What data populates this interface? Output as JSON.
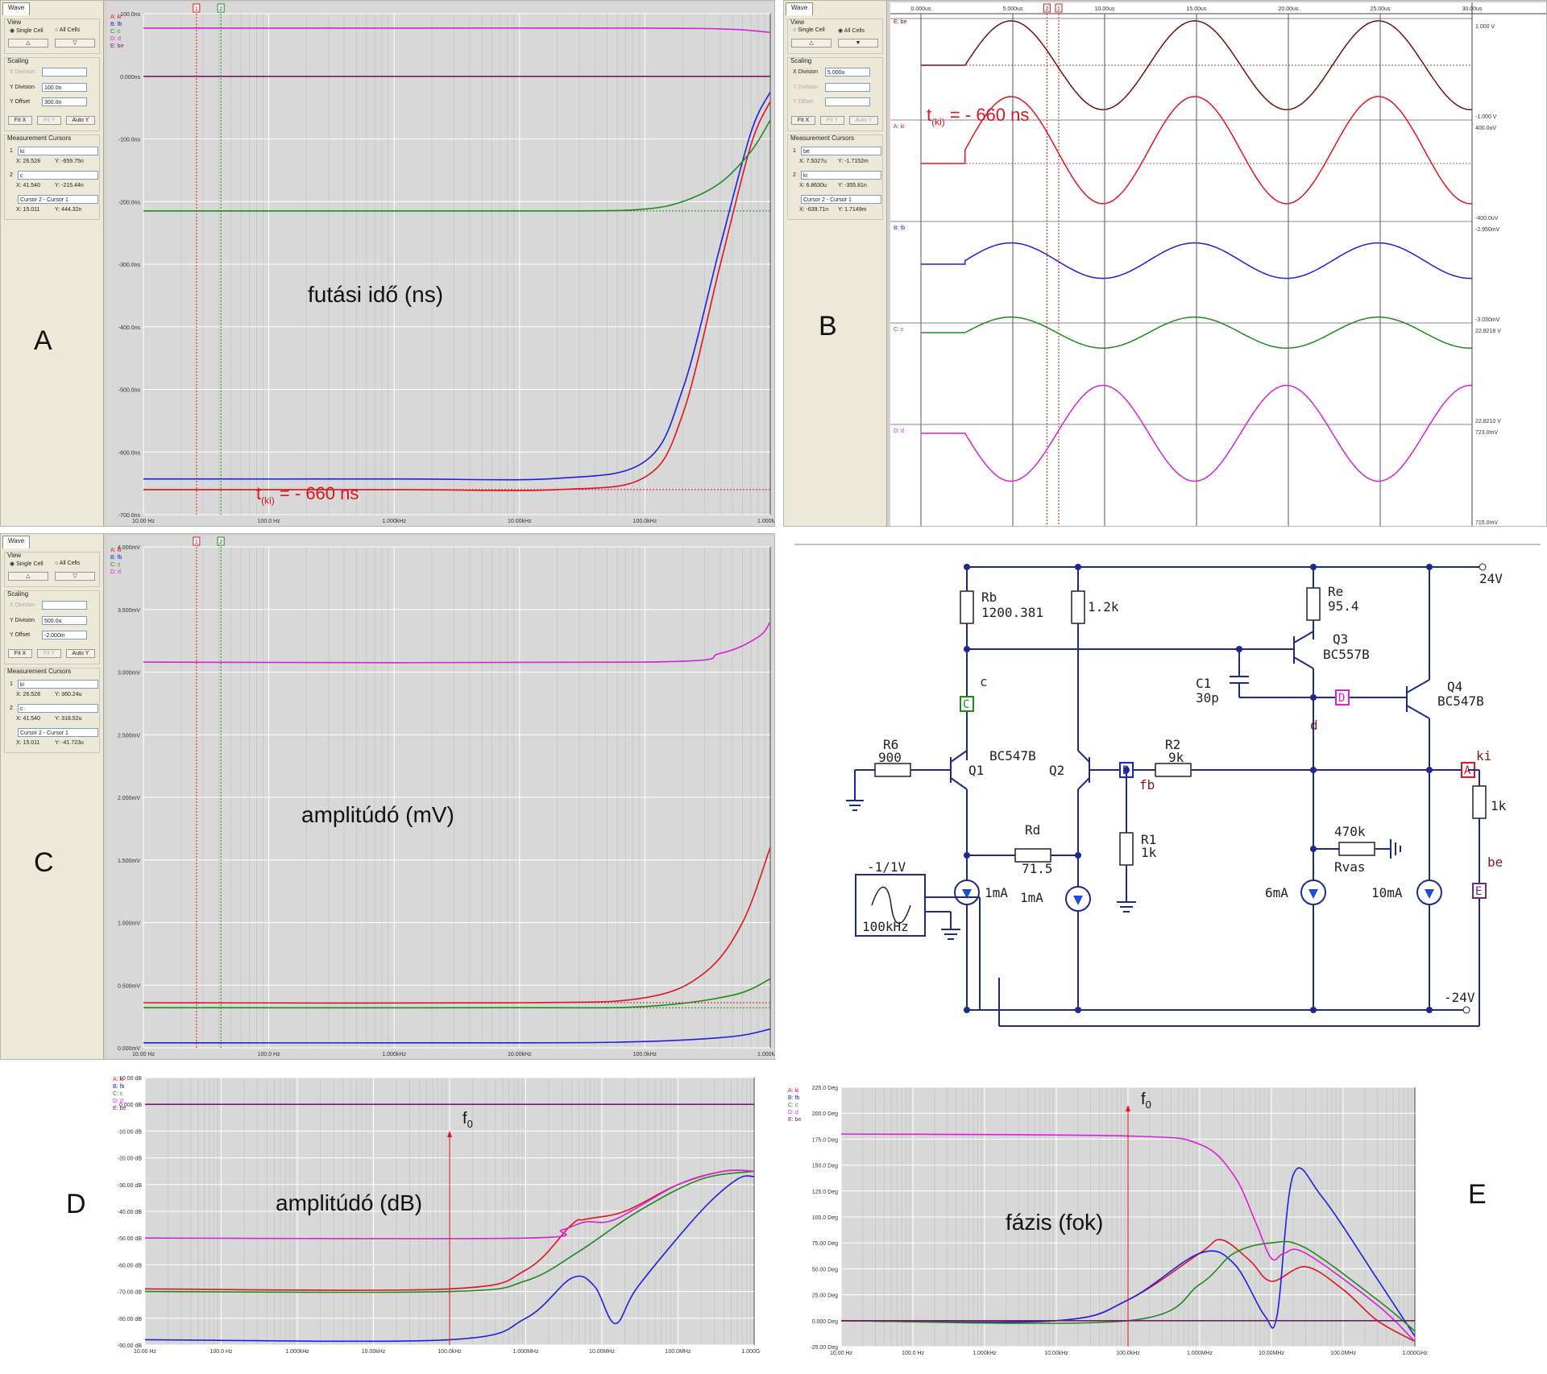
{
  "panel_letters": {
    "a": "A",
    "b": "B",
    "c": "C",
    "d": "D",
    "e": "E"
  },
  "sidebar": {
    "tab": "Wave",
    "view": "View",
    "single_cell": "Single Cell",
    "all_cells": "All Cells",
    "scaling": "Scaling",
    "x_division": "X Division",
    "y_division": "Y Division",
    "y_offset": "Y Offset",
    "fit_x": "Fit X",
    "fit_y": "Fit Y",
    "auto_y": "Auto Y",
    "measurement_cursors": "Measurement Cursors",
    "cursor_diff": "Cursor 2 - Cursor 1"
  },
  "panel_a": {
    "y_division_value": "100.0n",
    "y_offset_value": "300.0n",
    "cursor1": {
      "num": "1",
      "trace": "ki",
      "x": "X: 26.528",
      "y": "Y: -659.75n"
    },
    "cursor2": {
      "num": "2",
      "trace": "c",
      "x": "X: 41.540",
      "y": "Y: -215.44n"
    },
    "diff": {
      "x": "X: 15.011",
      "y": "Y: 444.32n"
    },
    "annotation": "futási idő (ns)",
    "t_ki": "t",
    "t_ki_sub": "(ki)",
    "t_ki_value": "= - 660 ns"
  },
  "panel_b": {
    "x_division_value": "5.000u",
    "cursor1": {
      "num": "1",
      "trace": "be",
      "x": "X: 7.5027u",
      "y": "Y: -1.7152m"
    },
    "cursor2": {
      "num": "2",
      "trace": "ki",
      "x": "X: 6.8630u",
      "y": "Y: -355.81n"
    },
    "diff": {
      "x": "X: -639.71n",
      "y": "Y: 1.7149m"
    },
    "t_ki": "t",
    "t_ki_sub": "(ki)",
    "t_ki_value": "= - 660 ns"
  },
  "panel_c": {
    "y_division_value": "500.0u",
    "y_offset_value": "-2.000m",
    "cursor1": {
      "num": "1",
      "trace": "ki",
      "x": "X: 26.528",
      "y": "Y: 360.24u"
    },
    "cursor2": {
      "num": "2",
      "trace": "c",
      "x": "X: 41.540",
      "y": "Y: 318.52u"
    },
    "diff": {
      "x": "X: 15.011",
      "y": "Y: -41.723u"
    },
    "annotation": "amplitúdó (mV)"
  },
  "panel_d": {
    "annotation": "amplitúdó (dB)",
    "f0": "f",
    "f0_sub": "0"
  },
  "panel_e": {
    "annotation": "fázis (fok)",
    "f0": "f",
    "f0_sub": "0"
  },
  "schematic": {
    "v_pos": "24V",
    "v_neg": "-24V",
    "rb": "Rb",
    "rb_val": "1200.381",
    "r_c2": "1.2k",
    "re": "Re",
    "re_val": "95.4",
    "q3": "Q3",
    "q3_type": "BC557B",
    "q4": "Q4",
    "q4_type": "BC547B",
    "c1": "C1",
    "c1_val": "30p",
    "node_c": "c",
    "probe_c": "C",
    "node_d": "d",
    "probe_d": "D",
    "r6": "R6",
    "r6_val": "900",
    "q1": "Q1",
    "q1_type": "BC547B",
    "q2": "Q2",
    "probe_b": "B",
    "node_fb": "fb",
    "r2": "R2",
    "r2_val": "9k",
    "probe_a": "A",
    "node_ki": "ki",
    "r_load": "1k",
    "rd": "Rd",
    "rd_val": "71.5",
    "r1": "R1",
    "r1_val": "1k",
    "r_vas": "470k",
    "r_vas_name": "Rvas",
    "node_be": "be",
    "probe_e": "E",
    "src_label": "-1/1V",
    "src_freq": "100kHz",
    "i1": "1mA",
    "i2": "1mA",
    "i3": "6mA",
    "i4": "10mA"
  },
  "chart_data": [
    {
      "type": "line",
      "id": "A",
      "xscale": "log",
      "x_ticks": [
        "10.00 Hz",
        "100.0 Hz",
        "1.000kHz",
        "10.00kHz",
        "100.0kHz",
        "1.000MHz"
      ],
      "y_ticks": [
        "100.0ns",
        "0.000ns",
        "-100.0ns",
        "-200.0ns",
        "-300.0ns",
        "-400.0ns",
        "-500.0ns",
        "-600.0ns",
        "-700.0ns"
      ],
      "ylim": [
        -700,
        100
      ],
      "legend": [
        "A: ki",
        "B: fb",
        "C: c",
        "D: d",
        "E: be"
      ],
      "cursors": [
        "1",
        "2"
      ],
      "series": [
        {
          "name": "ki",
          "color": "#e0141e",
          "points": [
            [
              10,
              -660
            ],
            [
              1000,
              -660
            ],
            [
              20000,
              -660
            ],
            [
              100000,
              -640
            ],
            [
              200000,
              -540
            ],
            [
              400000,
              -300
            ],
            [
              700000,
              -110
            ],
            [
              1000000,
              -40
            ]
          ]
        },
        {
          "name": "fb",
          "color": "#1e1ee0",
          "points": [
            [
              10,
              -643
            ],
            [
              1000,
              -643
            ],
            [
              20000,
              -642
            ],
            [
              100000,
              -615
            ],
            [
              200000,
              -500
            ],
            [
              400000,
              -270
            ],
            [
              700000,
              -90
            ],
            [
              1000000,
              -25
            ]
          ]
        },
        {
          "name": "c",
          "color": "#1e8a1e",
          "points": [
            [
              10,
              -215
            ],
            [
              1000,
              -215
            ],
            [
              30000,
              -215
            ],
            [
              100000,
              -212
            ],
            [
              200000,
              -200
            ],
            [
              400000,
              -170
            ],
            [
              700000,
              -120
            ],
            [
              1000000,
              -70
            ]
          ]
        },
        {
          "name": "d",
          "color": "#d622d6",
          "points": [
            [
              10,
              77
            ],
            [
              1000,
              77
            ],
            [
              100000,
              77
            ],
            [
              500000,
              75
            ],
            [
              1000000,
              70
            ]
          ]
        },
        {
          "name": "be",
          "color": "#7a1a6a",
          "points": [
            [
              10,
              0
            ],
            [
              1000000,
              0
            ]
          ]
        }
      ]
    },
    {
      "type": "line",
      "id": "B",
      "x_ticks": [
        "0.000us",
        "5.000us",
        "10.00us",
        "15.00us",
        "20.00us",
        "25.00us",
        "30.00us"
      ],
      "xlim": [
        0,
        30
      ],
      "traces": [
        {
          "label": "E: be",
          "color": "#6e1010",
          "top": "1.000 V",
          "bottom": "-1.000 V"
        },
        {
          "label": "A: ki",
          "color": "#e0141e",
          "top": "400.0uV",
          "bottom": "-400.0uV"
        },
        {
          "label": "B: fb",
          "color": "#1e1ee0",
          "top": "-2.950mV",
          "bottom": "-3.030mV"
        },
        {
          "label": "C: c",
          "color": "#1e8a1e",
          "top": "22.8218 V",
          "bottom": "22.8210 V"
        },
        {
          "label": "D: d",
          "color": "#d622d6",
          "top": "723.0mV",
          "bottom": "715.0mV"
        }
      ],
      "cursors": [
        "2",
        "1"
      ]
    },
    {
      "type": "line",
      "id": "C",
      "xscale": "log",
      "x_ticks": [
        "10.00 Hz",
        "100.0 Hz",
        "1.000kHz",
        "10.00kHz",
        "100.0kHz",
        "1.000MHz"
      ],
      "y_ticks": [
        "4.000mV",
        "3.500mV",
        "3.000mV",
        "2.500mV",
        "2.000mV",
        "1.500mV",
        "1.000mV",
        "0.500mV",
        "0.000mV"
      ],
      "ylim": [
        0,
        4
      ],
      "legend": [
        "A: ki",
        "B: fb",
        "C: c",
        "D: d"
      ],
      "cursors": [
        "1",
        "2"
      ],
      "series": [
        {
          "name": "ki",
          "color": "#e0141e",
          "points": [
            [
              10,
              0.36
            ],
            [
              10000,
              0.36
            ],
            [
              100000,
              0.4
            ],
            [
              300000,
              0.6
            ],
            [
              600000,
              1.0
            ],
            [
              1000000,
              1.6
            ]
          ]
        },
        {
          "name": "fb",
          "color": "#1e1ee0",
          "points": [
            [
              10,
              0.04
            ],
            [
              10000,
              0.04
            ],
            [
              100000,
              0.05
            ],
            [
              500000,
              0.09
            ],
            [
              1000000,
              0.15
            ]
          ]
        },
        {
          "name": "c",
          "color": "#1e8a1e",
          "points": [
            [
              10,
              0.32
            ],
            [
              10000,
              0.32
            ],
            [
              100000,
              0.33
            ],
            [
              500000,
              0.42
            ],
            [
              1000000,
              0.55
            ]
          ]
        },
        {
          "name": "d",
          "color": "#d622d6",
          "points": [
            [
              10,
              3.08
            ],
            [
              100000,
              3.08
            ],
            [
              400000,
              3.15
            ],
            [
              800000,
              3.28
            ],
            [
              1000000,
              3.4
            ]
          ]
        }
      ]
    },
    {
      "type": "line",
      "id": "D",
      "xscale": "log",
      "x_ticks": [
        "10.00 Hz",
        "100.0 Hz",
        "1.000kHz",
        "10.00kHz",
        "100.0kHz",
        "1.000MHz",
        "10.00MHz",
        "100.0MHz",
        "1.000GHz"
      ],
      "y_ticks": [
        "10.00 dB",
        "0.000 dB",
        "-10.00 dB",
        "-20.00 dB",
        "-30.00 dB",
        "-40.00 dB",
        "-50.00 dB",
        "-60.00 dB",
        "-70.00 dB",
        "-80.00 dB",
        "-90.00 dB"
      ],
      "ylim": [
        -90,
        10
      ],
      "legend": [
        "A: ki",
        "B: fb",
        "C: c",
        "D: d",
        "E: be"
      ],
      "series": [
        {
          "name": "ki",
          "color": "#e0141e",
          "points": [
            [
              10,
              -69
            ],
            [
              100000,
              -69
            ],
            [
              1000000,
              -62
            ],
            [
              4000000,
              -45
            ],
            [
              6000000,
              -43
            ],
            [
              20000000,
              -40
            ],
            [
              100000000,
              -30
            ],
            [
              400000000,
              -25
            ],
            [
              1000000000,
              -25
            ]
          ]
        },
        {
          "name": "fb",
          "color": "#1e1ee0",
          "points": [
            [
              10,
              -88
            ],
            [
              100000,
              -88
            ],
            [
              1000000,
              -80
            ],
            [
              4000000,
              -65
            ],
            [
              8000000,
              -68
            ],
            [
              15000000,
              -82
            ],
            [
              30000000,
              -68
            ],
            [
              200000000,
              -40
            ],
            [
              600000000,
              -28
            ],
            [
              1000000000,
              -27
            ]
          ]
        },
        {
          "name": "c",
          "color": "#1e8a1e",
          "points": [
            [
              10,
              -70
            ],
            [
              100000,
              -70
            ],
            [
              1000000,
              -66
            ],
            [
              5000000,
              -55
            ],
            [
              30000000,
              -40
            ],
            [
              200000000,
              -28
            ],
            [
              1000000000,
              -25
            ]
          ]
        },
        {
          "name": "d",
          "color": "#d622d6",
          "points": [
            [
              10,
              -50
            ],
            [
              1000000,
              -50
            ],
            [
              3000000,
              -47
            ],
            [
              6000000,
              -44
            ],
            [
              15000000,
              -43
            ],
            [
              100000000,
              -30
            ],
            [
              400000000,
              -25
            ],
            [
              1000000000,
              -25
            ]
          ]
        },
        {
          "name": "be",
          "color": "#7a1a6a",
          "points": [
            [
              10,
              0
            ],
            [
              1000000000,
              0
            ]
          ]
        }
      ]
    },
    {
      "type": "line",
      "id": "E",
      "xscale": "log",
      "x_ticks": [
        "10.00 Hz",
        "100.0 Hz",
        "1.000kHz",
        "10.00kHz",
        "100.0kHz",
        "1.000MHz",
        "10.00MHz",
        "100.0MHz",
        "1.000GHz"
      ],
      "y_ticks": [
        "225.0 Deg",
        "200.0 Deg",
        "175.0 Deg",
        "150.0 Deg",
        "125.0 Deg",
        "100.0 Deg",
        "75.00 Deg",
        "50.00 Deg",
        "25.00 Deg",
        "0.000 Deg",
        "-25.00 Deg"
      ],
      "ylim": [
        -25,
        225
      ],
      "legend": [
        "A: ki",
        "B: fb",
        "C: c",
        "D: d",
        "E: be"
      ],
      "series": [
        {
          "name": "ki",
          "color": "#e0141e",
          "points": [
            [
              10,
              0
            ],
            [
              10000,
              0
            ],
            [
              100000,
              20
            ],
            [
              1000000,
              65
            ],
            [
              2000000,
              78
            ],
            [
              5000000,
              58
            ],
            [
              10000000,
              38
            ],
            [
              30000000,
              52
            ],
            [
              100000000,
              30
            ],
            [
              300000000,
              0
            ],
            [
              1000000000,
              -20
            ]
          ]
        },
        {
          "name": "fb",
          "color": "#1e1ee0",
          "points": [
            [
              10,
              0
            ],
            [
              10000,
              0
            ],
            [
              100000,
              20
            ],
            [
              1000000,
              65
            ],
            [
              3000000,
              55
            ],
            [
              8000000,
              5
            ],
            [
              12000000,
              5
            ],
            [
              20000000,
              140
            ],
            [
              50000000,
              120
            ],
            [
              300000000,
              40
            ],
            [
              1000000000,
              -15
            ]
          ]
        },
        {
          "name": "c",
          "color": "#1e8a1e",
          "points": [
            [
              10,
              0
            ],
            [
              100000,
              0
            ],
            [
              1000000,
              35
            ],
            [
              3000000,
              65
            ],
            [
              10000000,
              75
            ],
            [
              30000000,
              70
            ],
            [
              300000000,
              20
            ],
            [
              1000000000,
              -10
            ]
          ]
        },
        {
          "name": "d",
          "color": "#d622d6",
          "points": [
            [
              10,
              180
            ],
            [
              100000,
              178
            ],
            [
              1000000,
              170
            ],
            [
              3000000,
              140
            ],
            [
              6000000,
              95
            ],
            [
              10000000,
              60
            ],
            [
              15000000,
              65
            ],
            [
              30000000,
              65
            ],
            [
              300000000,
              15
            ],
            [
              1000000000,
              -20
            ]
          ]
        },
        {
          "name": "be",
          "color": "#7a1a6a",
          "points": [
            [
              10,
              0
            ],
            [
              1000000000,
              0
            ]
          ]
        }
      ]
    }
  ]
}
